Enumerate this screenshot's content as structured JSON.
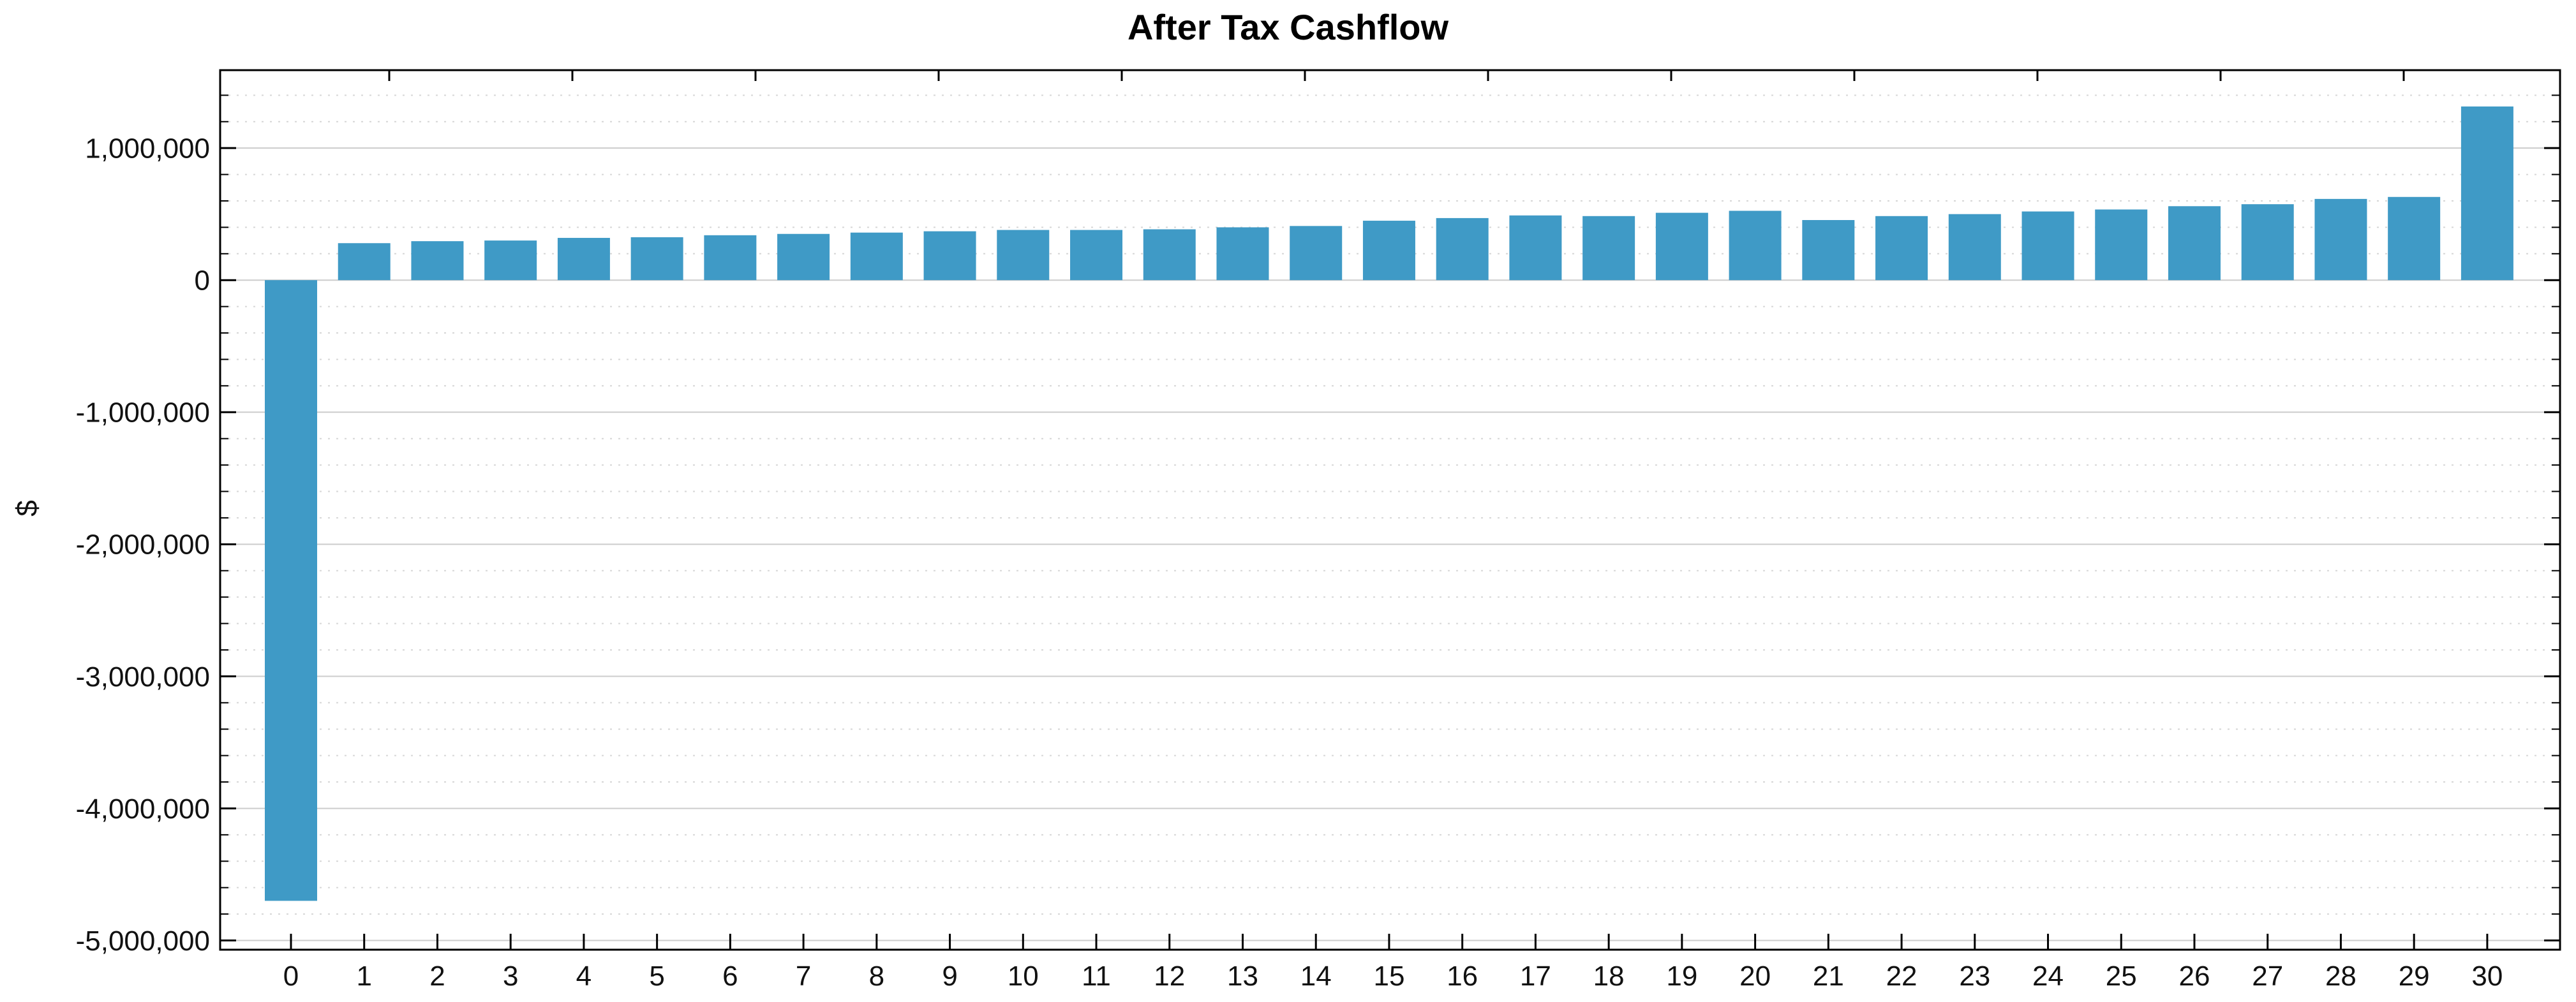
{
  "chart_data": {
    "type": "bar",
    "title": "After Tax Cashflow",
    "xlabel": "",
    "ylabel": "$",
    "categories": [
      "0",
      "1",
      "2",
      "3",
      "4",
      "5",
      "6",
      "7",
      "8",
      "9",
      "10",
      "11",
      "12",
      "13",
      "14",
      "15",
      "16",
      "17",
      "18",
      "19",
      "20",
      "21",
      "22",
      "23",
      "24",
      "25",
      "26",
      "27",
      "28",
      "29",
      "30"
    ],
    "values": [
      -4700000,
      280000,
      295000,
      300000,
      320000,
      325000,
      340000,
      350000,
      360000,
      370000,
      380000,
      380000,
      385000,
      400000,
      410000,
      450000,
      470000,
      490000,
      485000,
      510000,
      525000,
      455000,
      485000,
      500000,
      520000,
      535000,
      560000,
      575000,
      615000,
      630000,
      1315000
    ],
    "ylim": [
      -5070000,
      1590000
    ],
    "y_major_step": 1000000,
    "y_minor_step": 200000,
    "grid": "horizontal-major-solid-minor-dotted",
    "legend_position": "none",
    "y_axis": {
      "tick_values": [
        1000000,
        0,
        -1000000,
        -2000000,
        -3000000,
        -4000000,
        -5000000
      ],
      "tick_labels": [
        "1,000,000",
        "0",
        "-1,000,000",
        "-2,000,000",
        "-3,000,000",
        "-4,000,000",
        "-5,000,000"
      ]
    },
    "colors": {
      "bar": "#3F9AC6",
      "axis": "#000000",
      "grid_major": "#cccccc",
      "grid_minor": "#d6d6d6",
      "text": "#111111",
      "background": "#ffffff"
    }
  }
}
